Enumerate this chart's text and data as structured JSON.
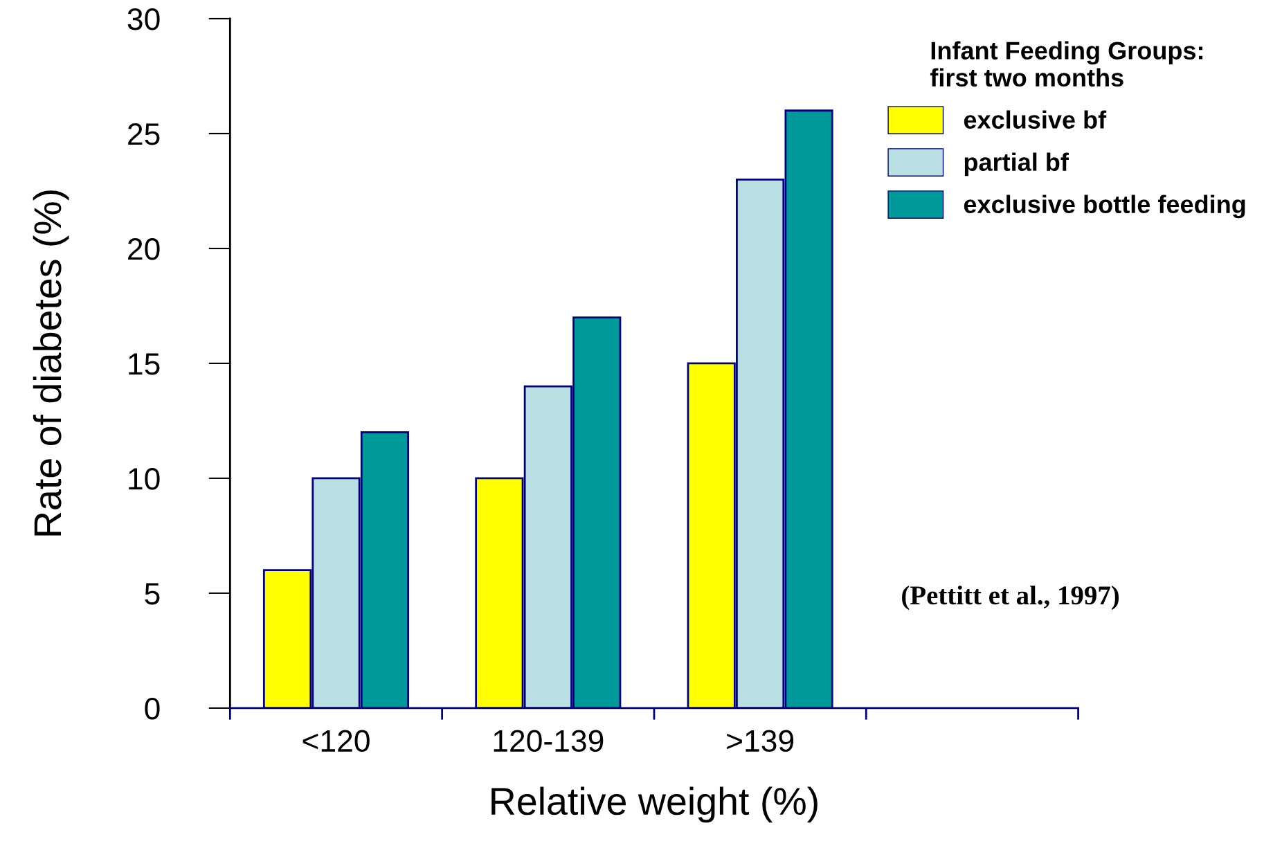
{
  "chart_data": {
    "type": "bar",
    "xlabel": "Relative weight (%)",
    "ylabel": "Rate of diabetes (%)",
    "legend_title": "Infant Feeding Groups:\nfirst two months",
    "categories": [
      "<120",
      "120-139",
      ">139",
      null
    ],
    "series": [
      {
        "name": "exclusive bf",
        "color": "#ffff00",
        "values": [
          6,
          10,
          15,
          null
        ]
      },
      {
        "name": "partial bf",
        "color": "#b9dfe3",
        "values": [
          10,
          14,
          23,
          null
        ]
      },
      {
        "name": "exclusive bottle feeding",
        "color": "#009999",
        "values": [
          12,
          17,
          26,
          null
        ]
      }
    ],
    "ylim": [
      0,
      30
    ],
    "yticks": [
      0,
      5,
      10,
      15,
      20,
      25,
      30
    ],
    "grid": false,
    "legend": "top right",
    "annotations": [
      "(Pettitt et al., 1997)"
    ]
  }
}
